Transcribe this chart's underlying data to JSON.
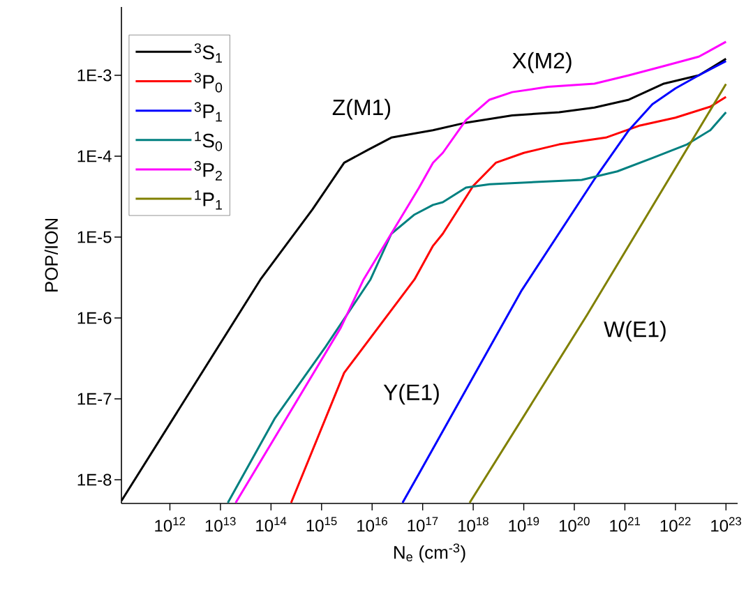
{
  "chart_data": {
    "type": "line",
    "xlabel": "N$_{e}$ (cm$^{-3}$)",
    "ylabel": "POP/ION",
    "log": "xy",
    "grid": false,
    "legend": "top left",
    "line_style": "solid",
    "marker": "none",
    "xlim": [
      110000000000.0,
      1.7e+23
    ],
    "ylim": [
      5.1e-09,
      0.007
    ],
    "xticks": [
      {
        "value": 1000000000000.0,
        "label": "10$^{12}$"
      },
      {
        "value": 10000000000000.0,
        "label": "10$^{13}$"
      },
      {
        "value": 100000000000000.0,
        "label": "10$^{14}$"
      },
      {
        "value": 1000000000000000.0,
        "label": "10$^{15}$"
      },
      {
        "value": 1e+16,
        "label": "10$^{16}$"
      },
      {
        "value": 1e+17,
        "label": "10$^{17}$"
      },
      {
        "value": 1e+18,
        "label": "10$^{18}$"
      },
      {
        "value": 1e+19,
        "label": "10$^{19}$"
      },
      {
        "value": 1e+20,
        "label": "10$^{20}$"
      },
      {
        "value": 1e+21,
        "label": "10$^{21}$"
      },
      {
        "value": 1e+22,
        "label": "10$^{22}$"
      },
      {
        "value": 1e+23,
        "label": "10$^{23}$"
      }
    ],
    "yticks": [
      {
        "value": 1e-08,
        "label": "1E-8"
      },
      {
        "value": 1e-07,
        "label": "1E-7"
      },
      {
        "value": 1e-06,
        "label": "1E-6"
      },
      {
        "value": 1e-05,
        "label": "1E-5"
      },
      {
        "value": 0.0001,
        "label": "1E-4"
      },
      {
        "value": 0.001,
        "label": "1E-3"
      }
    ],
    "series": [
      {
        "name": "$^{3}$S$_{1}$",
        "color": "#000000",
        "x": [
          110000000000.0,
          62000000000000.0,
          660000000000000.0,
          2800000000000000.0,
          8300000000000000.0,
          2.4e+16,
          1.6e+17,
          7.2e+17,
          5.9e+18,
          5e+19,
          2.5e+20,
          1.2e+21,
          5.9e+21,
          2.9e+22,
          1e+23
        ],
        "values": [
          5.5e-09,
          3e-06,
          2.2e-05,
          8.3e-05,
          0.00012,
          0.00017,
          0.00021,
          0.00026,
          0.00032,
          0.00035,
          0.0004,
          0.0005,
          0.00079,
          0.001,
          0.0016
        ]
      },
      {
        "name": "$^{3}$P$_{0}$",
        "color": "#ff0000",
        "x": [
          250000000000000.0,
          2800000000000000.0,
          6.9e+16,
          1.6e+17,
          2.5e+17,
          1e+18,
          2.8e+18,
          1e+19,
          5e+19,
          4.2e+20,
          2e+21,
          1e+22,
          4.9e+22,
          1e+23
        ],
        "values": [
          5.2e-09,
          2.1e-07,
          3e-06,
          7.8e-06,
          1.1e-05,
          4.3e-05,
          8.3e-05,
          0.00011,
          0.00014,
          0.00017,
          0.00024,
          0.0003,
          0.00041,
          0.00054
        ]
      },
      {
        "name": "$^{3}$P$_{1}$",
        "color": "#0000ff",
        "x": [
          4e+16,
          8.5e+16,
          9.1e+18,
          2.5e+20,
          1.2e+21,
          3.5e+21,
          1e+22,
          2.9e+22,
          1e+23
        ],
        "values": [
          5.2e-09,
          1.2e-08,
          2.2e-06,
          5.2e-05,
          0.00021,
          0.00044,
          0.00069,
          0.001,
          0.0015
        ]
      },
      {
        "name": "$^{1}$S$_{0}$",
        "color": "#008080",
        "x": [
          14000000000000.0,
          120000000000000.0,
          1200000000000000.0,
          9300000000000000.0,
          2.4e+16,
          6.9e+16,
          1.6e+17,
          2.5e+17,
          7.2e+17,
          2.1e+18,
          1.7e+19,
          1.4e+20,
          7.1e+20,
          3.5e+21,
          1.7e+22,
          4.9e+22,
          1e+23
        ],
        "values": [
          5.2e-09,
          5.8e-08,
          4.4e-07,
          3e-06,
          1.1e-05,
          1.9e-05,
          2.5e-05,
          2.7e-05,
          4.1e-05,
          4.5e-05,
          4.8e-05,
          5.1e-05,
          6.5e-05,
          9.5e-05,
          0.00014,
          0.00021,
          0.00035
        ]
      },
      {
        "name": "$^{3}$P$_{2}$",
        "color": "#ff00ff",
        "x": [
          20000000000000.0,
          2400000000000000.0,
          6800000000000000.0,
          8.5e+16,
          1.6e+17,
          2.5e+17,
          7.2e+17,
          2.1e+18,
          5.9e+18,
          3e+19,
          2.5e+20,
          1.2e+21,
          5.9e+21,
          2.9e+22,
          1e+23
        ],
        "values": [
          5.2e-09,
          7.6e-07,
          3e-06,
          4.1e-05,
          8.3e-05,
          0.00011,
          0.00028,
          0.0005,
          0.00062,
          0.00072,
          0.00079,
          0.001,
          0.0013,
          0.0017,
          0.0026
        ]
      },
      {
        "name": "$^{1}$P$_{1}$",
        "color": "#808000",
        "x": [
          8.5e+17,
          1.8e+20,
          1e+23
        ],
        "values": [
          5.2e-09,
          1.1e-06,
          0.00078
        ]
      }
    ],
    "annotations": [
      "Z(M1)",
      "X(M2)",
      "Y(E1)",
      "W(E1)"
    ]
  }
}
